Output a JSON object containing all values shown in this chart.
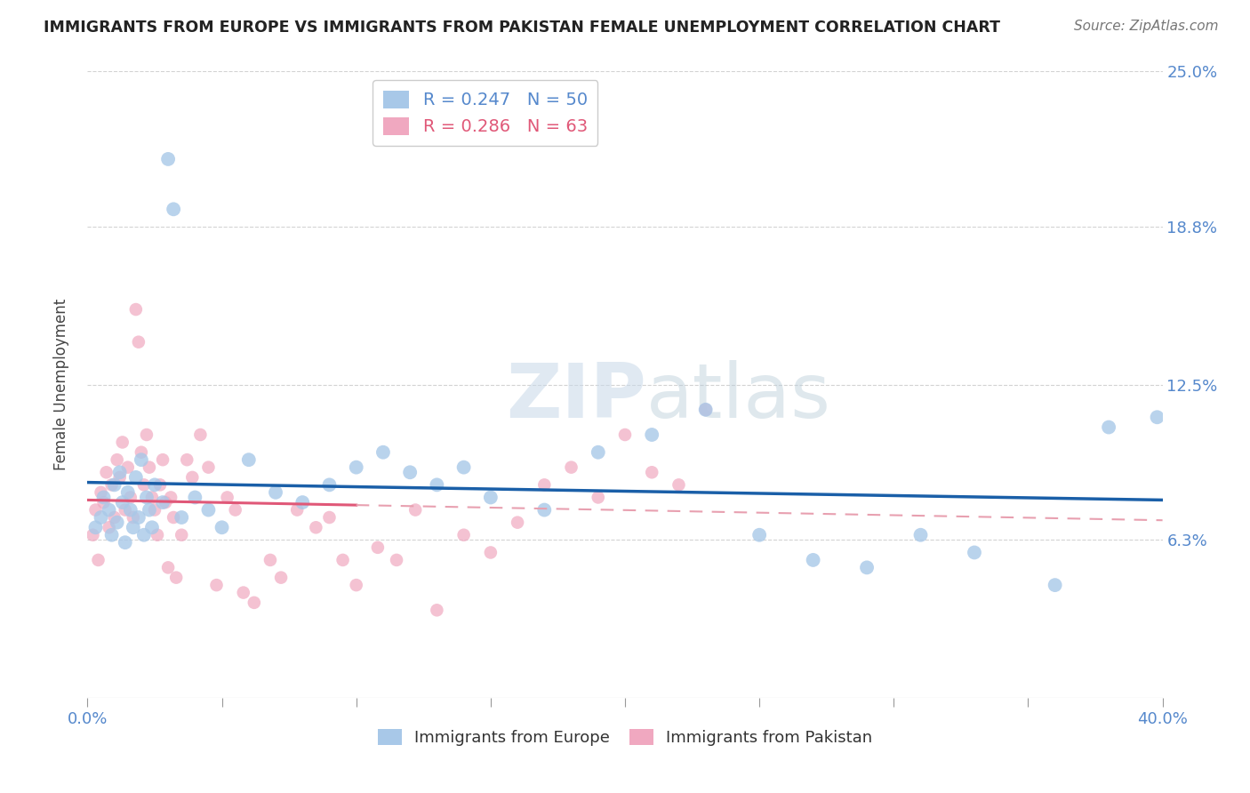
{
  "title": "IMMIGRANTS FROM EUROPE VS IMMIGRANTS FROM PAKISTAN FEMALE UNEMPLOYMENT CORRELATION CHART",
  "source": "Source: ZipAtlas.com",
  "ylabel": "Female Unemployment",
  "xlim": [
    0.0,
    40.0
  ],
  "ylim": [
    0.0,
    25.0
  ],
  "xtick_positions": [
    0.0,
    5.0,
    10.0,
    15.0,
    20.0,
    25.0,
    30.0,
    35.0,
    40.0
  ],
  "ytick_values": [
    6.3,
    12.5,
    18.8,
    25.0
  ],
  "watermark_zip": "ZIP",
  "watermark_atlas": "atlas",
  "legend_europe": "Immigrants from Europe",
  "legend_pakistan": "Immigrants from Pakistan",
  "R_europe": 0.247,
  "N_europe": 50,
  "R_pakistan": 0.286,
  "N_pakistan": 63,
  "color_europe": "#a8c8e8",
  "color_pakistan": "#f0a8c0",
  "trend_europe_color": "#1a5fa8",
  "trend_pakistan_solid_color": "#e05878",
  "trend_pakistan_dash_color": "#e8a0b0",
  "background_color": "#ffffff",
  "grid_color": "#c8c8c8",
  "title_color": "#222222",
  "axis_label_color": "#444444",
  "tick_label_color": "#5588cc",
  "europe_x": [
    0.3,
    0.5,
    0.6,
    0.8,
    0.9,
    1.0,
    1.1,
    1.2,
    1.3,
    1.4,
    1.5,
    1.6,
    1.7,
    1.8,
    1.9,
    2.0,
    2.1,
    2.2,
    2.3,
    2.4,
    2.5,
    2.8,
    3.0,
    3.2,
    3.5,
    4.0,
    4.5,
    5.0,
    6.0,
    7.0,
    8.0,
    9.0,
    10.0,
    11.0,
    12.0,
    13.0,
    14.0,
    15.0,
    17.0,
    19.0,
    21.0,
    23.0,
    25.0,
    27.0,
    29.0,
    31.0,
    33.0,
    36.0,
    38.0,
    39.8
  ],
  "europe_y": [
    6.8,
    7.2,
    8.0,
    7.5,
    6.5,
    8.5,
    7.0,
    9.0,
    7.8,
    6.2,
    8.2,
    7.5,
    6.8,
    8.8,
    7.2,
    9.5,
    6.5,
    8.0,
    7.5,
    6.8,
    8.5,
    7.8,
    21.5,
    19.5,
    7.2,
    8.0,
    7.5,
    6.8,
    9.5,
    8.2,
    7.8,
    8.5,
    9.2,
    9.8,
    9.0,
    8.5,
    9.2,
    8.0,
    7.5,
    9.8,
    10.5,
    11.5,
    6.5,
    5.5,
    5.2,
    6.5,
    5.8,
    4.5,
    10.8,
    11.2
  ],
  "pakistan_x": [
    0.2,
    0.3,
    0.4,
    0.5,
    0.6,
    0.7,
    0.8,
    0.9,
    1.0,
    1.1,
    1.2,
    1.3,
    1.4,
    1.5,
    1.6,
    1.7,
    1.8,
    1.9,
    2.0,
    2.1,
    2.2,
    2.3,
    2.4,
    2.5,
    2.6,
    2.7,
    2.8,
    2.9,
    3.0,
    3.1,
    3.2,
    3.3,
    3.5,
    3.7,
    3.9,
    4.2,
    4.5,
    4.8,
    5.2,
    5.5,
    5.8,
    6.2,
    6.8,
    7.2,
    7.8,
    8.5,
    9.0,
    9.5,
    10.0,
    10.8,
    11.5,
    12.2,
    13.0,
    14.0,
    15.0,
    16.0,
    17.0,
    18.0,
    19.0,
    20.0,
    21.0,
    22.0,
    23.0
  ],
  "pakistan_y": [
    6.5,
    7.5,
    5.5,
    8.2,
    7.8,
    9.0,
    6.8,
    8.5,
    7.2,
    9.5,
    8.8,
    10.2,
    7.5,
    9.2,
    8.0,
    7.2,
    15.5,
    14.2,
    9.8,
    8.5,
    10.5,
    9.2,
    8.0,
    7.5,
    6.5,
    8.5,
    9.5,
    7.8,
    5.2,
    8.0,
    7.2,
    4.8,
    6.5,
    9.5,
    8.8,
    10.5,
    9.2,
    4.5,
    8.0,
    7.5,
    4.2,
    3.8,
    5.5,
    4.8,
    7.5,
    6.8,
    7.2,
    5.5,
    4.5,
    6.0,
    5.5,
    7.5,
    3.5,
    6.5,
    5.8,
    7.0,
    8.5,
    9.2,
    8.0,
    10.5,
    9.0,
    8.5,
    11.5
  ],
  "trend_europe_start_x": 0.0,
  "trend_europe_end_x": 40.0,
  "trend_pakistan_solid_start_x": 0.0,
  "trend_pakistan_solid_end_x": 10.0,
  "trend_pakistan_dash_start_x": 10.0,
  "trend_pakistan_dash_end_x": 40.0
}
